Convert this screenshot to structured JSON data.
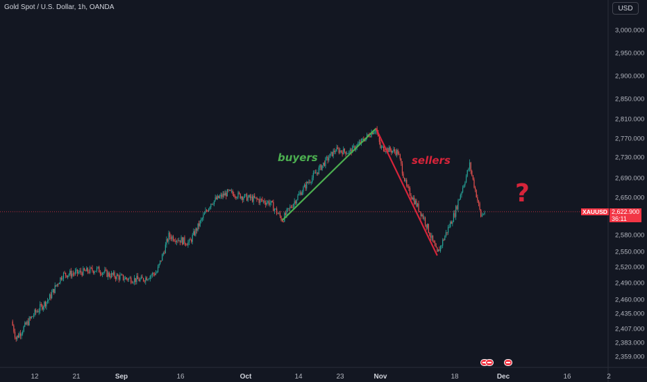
{
  "header": {
    "title": "Gold Spot / U.S. Dollar, 1h, OANDA",
    "currency": "USD"
  },
  "price_scale": {
    "ticks": [
      "3,000.000",
      "2,950.000",
      "2,900.000",
      "2,850.000",
      "2,810.000",
      "2,770.000",
      "2,730.000",
      "2,690.000",
      "2,650.000",
      "2,580.000",
      "2,550.000",
      "2,520.000",
      "2,490.000",
      "2,460.000",
      "2,435.000",
      "2,407.000",
      "2,383.000",
      "2,359.000"
    ]
  },
  "time_scale": {
    "ticks": [
      {
        "label": "12",
        "bold": false
      },
      {
        "label": "21",
        "bold": false
      },
      {
        "label": "Sep",
        "bold": true
      },
      {
        "label": "16",
        "bold": false
      },
      {
        "label": "Oct",
        "bold": true
      },
      {
        "label": "14",
        "bold": false
      },
      {
        "label": "23",
        "bold": false
      },
      {
        "label": "Nov",
        "bold": true
      },
      {
        "label": "18",
        "bold": false
      },
      {
        "label": "Dec",
        "bold": true
      },
      {
        "label": "16",
        "bold": false
      },
      {
        "label": "2",
        "bold": false
      }
    ]
  },
  "current_price": {
    "symbol": "XAUUSD",
    "price": "2,622.900",
    "countdown": "36:11",
    "value": 2622.9
  },
  "annotations": {
    "buyers": "buyers",
    "sellers": "sellers",
    "question": "?"
  },
  "colors": {
    "background": "#131722",
    "up": "#26a69a",
    "down": "#ef5350",
    "buyers": "#4caf50",
    "sellers": "#d6243a",
    "price_line": "#f23645"
  },
  "chart_data": {
    "type": "candlestick",
    "title": "Gold Spot / U.S. Dollar, 1h, OANDA",
    "y_axis": "price (USD)",
    "x_axis": "date",
    "ylim": [
      2340,
      3030
    ],
    "path_points": [
      {
        "x": "Aug 7",
        "y": 2420
      },
      {
        "x": "Aug 8",
        "y": 2390
      },
      {
        "x": "Aug 12",
        "y": 2435
      },
      {
        "x": "Aug 15",
        "y": 2460
      },
      {
        "x": "Aug 18",
        "y": 2505
      },
      {
        "x": "Aug 21",
        "y": 2508
      },
      {
        "x": "Aug 26",
        "y": 2515
      },
      {
        "x": "Aug 29",
        "y": 2505
      },
      {
        "x": "Sep 2",
        "y": 2498
      },
      {
        "x": "Sep 6",
        "y": 2495
      },
      {
        "x": "Sep 10",
        "y": 2510
      },
      {
        "x": "Sep 13",
        "y": 2578
      },
      {
        "x": "Sep 18",
        "y": 2565
      },
      {
        "x": "Sep 23",
        "y": 2640
      },
      {
        "x": "Sep 27",
        "y": 2660
      },
      {
        "x": "Oct 1",
        "y": 2650
      },
      {
        "x": "Oct 7",
        "y": 2640
      },
      {
        "x": "Oct 10",
        "y": 2608
      },
      {
        "x": "Oct 16",
        "y": 2680
      },
      {
        "x": "Oct 22",
        "y": 2745
      },
      {
        "x": "Oct 25",
        "y": 2740
      },
      {
        "x": "Oct 31",
        "y": 2790
      },
      {
        "x": "Nov 1",
        "y": 2750
      },
      {
        "x": "Nov 5",
        "y": 2740
      },
      {
        "x": "Nov 7",
        "y": 2670
      },
      {
        "x": "Nov 11",
        "y": 2610
      },
      {
        "x": "Nov 14",
        "y": 2545
      },
      {
        "x": "Nov 18",
        "y": 2620
      },
      {
        "x": "Nov 22",
        "y": 2715
      },
      {
        "x": "Nov 25",
        "y": 2615
      },
      {
        "x": "Nov 26",
        "y": 2622.9
      }
    ],
    "trend_lines": [
      {
        "name": "buyers",
        "from": {
          "x": "Oct 10",
          "y": 2607
        },
        "to": {
          "x": "Oct 31",
          "y": 2790
        }
      },
      {
        "name": "sellers",
        "from": {
          "x": "Oct 31",
          "y": 2790
        },
        "to": {
          "x": "Nov 14",
          "y": 2542
        }
      }
    ]
  }
}
